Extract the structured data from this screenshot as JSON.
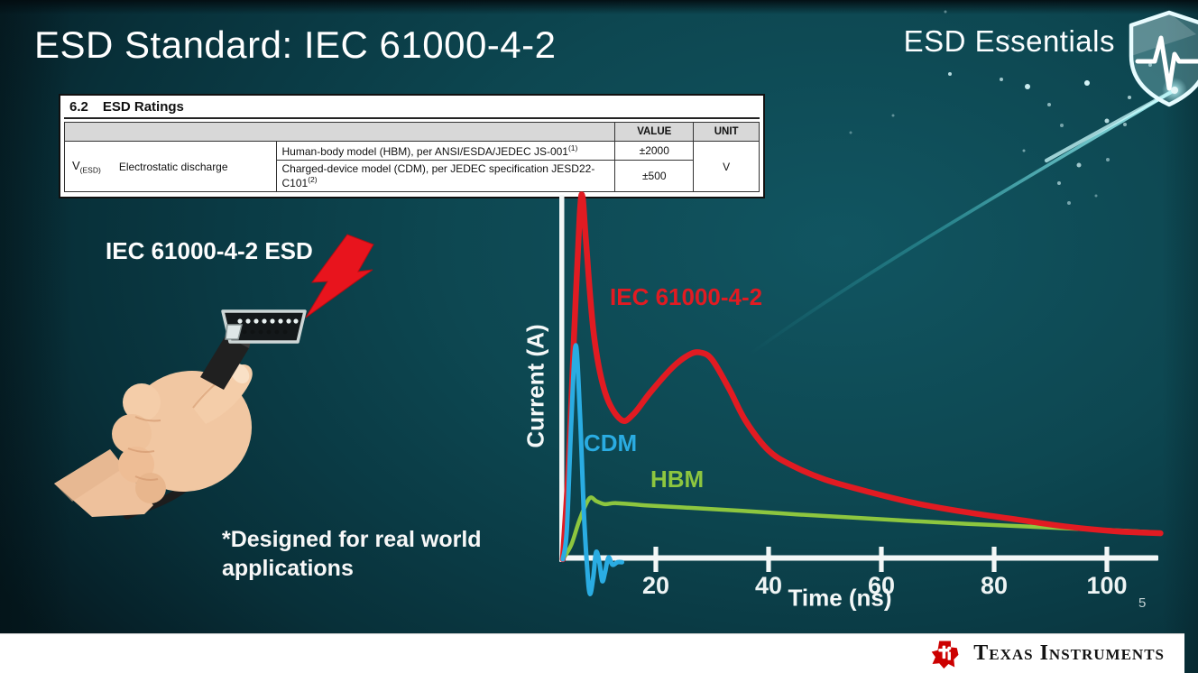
{
  "slide": {
    "title": "ESD Standard: IEC 61000-4-2",
    "brand": "ESD Essentials",
    "page_number": "5",
    "illustration_label": "IEC 61000-4-2 ESD",
    "footnote": "*Designed for real world applications"
  },
  "ratings_table": {
    "section_number": "6.2",
    "section_title": "ESD Ratings",
    "headers": {
      "value": "VALUE",
      "unit": "UNIT"
    },
    "param_symbol": "V",
    "param_symbol_subscript": "(ESD)",
    "param_name": "Electrostatic discharge",
    "rows": [
      {
        "description": "Human-body model (HBM), per ANSI/ESDA/JEDEC JS-001",
        "superscript": "(1)",
        "value": "±2000"
      },
      {
        "description": "Charged-device model (CDM), per JEDEC specification JESD22-C101",
        "superscript": "(2)",
        "value": "±500"
      }
    ],
    "unit": "V"
  },
  "chart_data": {
    "type": "line",
    "title": "",
    "xlabel": "Time (ns)",
    "ylabel": "Current (A)",
    "x_ticks": [
      20,
      40,
      60,
      80,
      100
    ],
    "xlim": [
      0,
      110
    ],
    "y_axis": "unlabeled relative current amplitude (0-100)",
    "grid": false,
    "legend_position": "inline-labels",
    "series": [
      {
        "name": "IEC 61000-4-2",
        "color": "#e11b22",
        "x": [
          3.5,
          4.5,
          5.5,
          6.5,
          7,
          7.6,
          9,
          11,
          13.8,
          16,
          19,
          23,
          26,
          28,
          30,
          33,
          36,
          40,
          44,
          50,
          58,
          66,
          75,
          84,
          93,
          101,
          106,
          109.5
        ],
        "y": [
          0,
          25,
          62,
          95,
          100,
          88,
          62,
          46,
          38.5,
          40,
          46,
          53,
          56.5,
          57,
          55,
          47,
          38,
          30,
          26,
          22,
          18.5,
          15.5,
          13,
          11,
          9,
          7.8,
          7.4,
          7.2
        ]
      },
      {
        "name": "CDM",
        "color": "#2aace2",
        "x": [
          3.5,
          4.2,
          5,
          5.8,
          6.6,
          7.2,
          7.8,
          8.3,
          8.9,
          9.4,
          10,
          10.5,
          11,
          11.6,
          12.3,
          13.2,
          14
        ],
        "y": [
          0,
          8,
          38,
          59,
          38,
          14,
          -2,
          -9.5,
          -5,
          2,
          -1,
          -6,
          -3.5,
          0.5,
          -1.5,
          -0.8,
          -0.8
        ]
      },
      {
        "name": "HBM",
        "color": "#8dc63f",
        "x": [
          3.5,
          5,
          6.5,
          8.2,
          9.5,
          11,
          13,
          18,
          26,
          35,
          45,
          55,
          65,
          75,
          85,
          95,
          103,
          109
        ],
        "y": [
          0,
          4,
          11,
          16.8,
          16,
          15.2,
          15.5,
          14.9,
          14.2,
          13.4,
          12.4,
          11.5,
          10.6,
          9.8,
          9.1,
          8.4,
          7.9,
          7.4
        ]
      }
    ]
  },
  "footer": {
    "brand": "Texas Instruments"
  }
}
